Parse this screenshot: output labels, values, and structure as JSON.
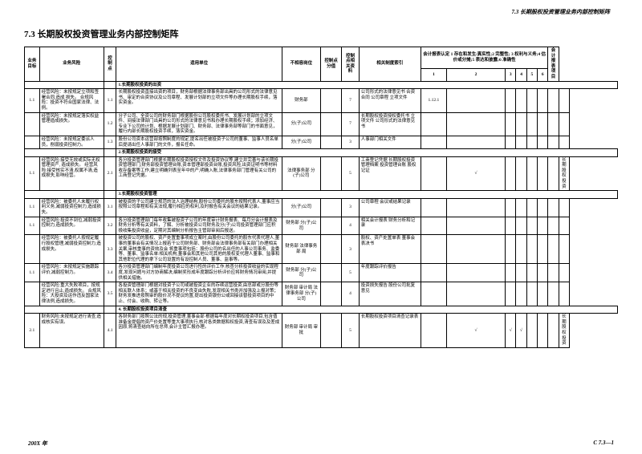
{
  "header_text": "7.3 长期股权投资管理业务内部控制矩阵",
  "page_title": "7.3 长期股权投资管理业务内部控制矩阵",
  "footer_left": "200X 年",
  "footer_right": "C 7.3—1",
  "columns": {
    "c1": "业务目标",
    "c2": "业务风险",
    "c3": "",
    "c4": "控制点",
    "c5": "适用单位",
    "c6": "不相容岗位",
    "c7": "控制点分值",
    "c8": "控制点相关资料",
    "c9": "相关制度索引",
    "c10": "会计报表认定\n1 存在和发生/真实性;2 完整性;\n3 权利与义务;4 估价或分摊;5\n表达和披露;6 准确性",
    "c10_sub": [
      "1",
      "2",
      "3",
      "4",
      "5",
      "6"
    ],
    "c11": "会计报表项目"
  },
  "sections": [
    {
      "title": "1.长期股权投资的出资"
    },
    {
      "title": "2.长期股权投资的接受"
    },
    {
      "title": "3.长期股权投资管理"
    },
    {
      "title": "4. 长期股权投资项目清查"
    }
  ],
  "rows": [
    {
      "n1": "1.1",
      "r1": "经营风险：未按规定立项和签署合同,造成",
      "n2": "3.1",
      "r2": "损失。",
      "sub": "合规风险：投资不符合国家法律、法例。",
      "cn": "1.1",
      "cp": "长期股权投资直接出资的项目，财务部根据法律事务部出具的公司形式的法律意见书、审定的合资协议及公司章程、发展计划部的立项文件等办理长期股权手续，落实资金。",
      "unit": "财务部",
      "bp": "",
      "score": "7",
      "docs": "公司形式的法律意见书\n合资合同\n公司章程\n立项文件",
      "idx": "1.12.1",
      "chk": [
        "",
        "",
        "",
        "",
        "",
        ""
      ],
      "rep": ""
    },
    {
      "n1": "",
      "r1": "经营风险：未按规定落实权益管理造成损失。",
      "n2": "",
      "r2": "",
      "cn": "1.2",
      "cp": "分子公司、全资公司的财务部门根据股份公司股权委托书、发展计划部的立项文件、间接法律部门出具的公司形式的法律意见书和办理长期股权手续；添加经济、专业下公司的计划、根据发展计划部门、财务部、法律事务部等部门的书面意见，履行内部长期股权投资手续，落实资金。",
      "unit": "分(子)公司",
      "bp": "",
      "score": "7",
      "docs": "长期股权投资授权委托书\n立项文件\n公司形式的法律意见书",
      "idx": "",
      "chk": [
        "",
        "",
        "",
        "",
        "",
        ""
      ],
      "rep": ""
    },
    {
      "n1": "",
      "r1": "经营风险：未按规定委派人员，削弱投资控制力。",
      "n2": "",
      "r2": "",
      "cn": "1.3",
      "cp": "股份公司资本运营部按照制度的规定,提名出任被投资子公司的董事、监事人员名单后提请出任人事部门的文件，报名任命。",
      "unit": "分(子)公司",
      "bp": "",
      "score": "3",
      "docs": "人事部门相关文件",
      "idx": "",
      "chk": [
        "",
        "",
        "",
        "",
        "",
        ""
      ],
      "rep": ""
    },
    {
      "section": 1
    },
    {
      "n1": "1.1",
      "r1": "经营风险:接受无效或实际无权管理资产,",
      "n2": "2.1",
      "r2": "造成损失。",
      "sub": "经营风险:接受核实不清,权属不清,造成损失,影响经营。",
      "cn": "2.1",
      "cp": "各分投资管理部门根据长期股权投资授权文件及投资协议等,建立并完善与该长期投资管理部门,财务部投资管理台账,资本管理部投资台账,投资风险,出资证明书等材料收存备案等工作,建立明确列表至年中的产,明确入账,法律事务部门管理有关公司的工商登记凭据。",
      "unit": "法律事务部\n分(子)公司",
      "bp": "",
      "score": "5",
      "docs": "工商登记凭据\n长期股权投资管理档案\n投资管理台账\n股权记证",
      "idx": "",
      "chk": [
        "√",
        "",
        "",
        "",
        "",
        ""
      ],
      "rep": "长期股权投资"
    },
    {
      "section": 2
    },
    {
      "n1": "1.1",
      "r1": "经营风险：被委托人未履行权利义务,减弱投资控制力,造成损失。",
      "n2": "",
      "r2": "",
      "cn": "3.1",
      "cp": "被投资的子公司建立规范的法人治理结构,股份公司委托的股东按照代表人,董事应当按照公司章程和有关法规,履行相应的权利,及时报告有关会议的结果记录。",
      "unit": "分(子)公司",
      "bp": "",
      "score": "3",
      "docs": "公司章程\n会议或结果记录",
      "idx": "",
      "chk": [
        "",
        "",
        "",
        "",
        "",
        ""
      ],
      "rep": ""
    },
    {
      "n1": "1.1",
      "r1": "经营风险:投资不到位,减弱投资控制力,造成损失。",
      "n2": "",
      "r2": "",
      "cn": "3.2",
      "cp": "各分投资管理部门每年收集被投资子公司的年度审计财务报表、每月分会计报表及财务分析等有关资料，了解、分析被投资公司财务及分(子)公司投资管理部门应积极收集投资收益，定期对其编制分析报告主管部审阅后报送。",
      "unit": "财务部\n分(子)公司",
      "bp": "",
      "score": "4",
      "docs": "相关会计报表\n财务分析和记录",
      "idx": "",
      "chk": [
        "",
        "",
        "",
        "",
        "",
        ""
      ],
      "rep": ""
    },
    {
      "n1": "",
      "r1": "经营风险：被委托人按规定履行股权管理,减弱投资控制力,造成损失。",
      "n2": "",
      "r2": "",
      "cn": "3.3",
      "cp": "被投资公司的股权、资产处置重事项成立案时,由股份公司委托的股东代表代理人,董事的董事会有关情况上报若干公司财务部、财务部会法律事务部有关部门办理相关关案,审核重事的资效及会 将重事项包括：股份公司的名出任的人事公司事务、监委等、董事、监事名单:相关机构,董事会和其他公司其他的股权变代理人董事、监事和其他职位代理的拿下公司设置的有设控制人员、董事、监事等。",
      "unit": "财务部\n法律事务部\n局",
      "bp": "",
      "score": "3",
      "docs": "股权、资产处置单表\n董事会表决书",
      "idx": "",
      "chk": [
        "",
        "",
        "",
        "",
        "",
        ""
      ],
      "rep": ""
    },
    {
      "n1": "1.1",
      "r1": "经营风险：未按规定实施跟踪评价,减弱控制力。",
      "n2": "",
      "r2": "",
      "cn": "3.4",
      "cp": "各分投资管理部门编制年度投资公司进行性的评价工作,核查分析投资收益的实现程度,发现问题与对方协商解决,编制奖形成年度跟踪分析评价应将财务情况审阅,并提供相关措施。",
      "unit": "财务部\n分(子)公司",
      "bp": "",
      "score": "5",
      "docs": "年度跟踪评价报告",
      "idx": "",
      "chk": [
        "",
        "",
        "",
        "",
        "",
        ""
      ],
      "rep": ""
    },
    {
      "n1": "",
      "r1": "经营风险:重大失败项目，按规定进行且止,造成损失。",
      "n2": "3.1",
      "r2": "",
      "sub": "合规风险：大投资及运作违反国家法律法例,造成损失。",
      "cn": "3.5",
      "cp": "各投资管理部门根据对投资子公司或被投资企业的存续运营投资,由总部或分股份等相关联人体系；或基于相关投资的不良变由失败,发现相关书类并加强及上报对策；财务发推进按照审的股价况不提议的置,提出投资银份公或回接该替投资项目的中止、付会、收购、转让等。",
      "unit": "财务部\n审计局\n法律事务部\n分(子)公司",
      "bp": "",
      "score": "4",
      "docs": "投资损失报告\n股份公司批复意见",
      "idx": "",
      "chk": [
        "",
        "",
        "",
        "",
        "",
        ""
      ],
      "rep": ""
    },
    {
      "section": 3
    },
    {
      "n1": "2.1",
      "r1": "财务风险:未按规定进行清查,造成核实有误。",
      "n2": "",
      "r2": "",
      "cn": "4.1",
      "cp": "各财务部门按照公法的规,投资管理,董事会部 根据每年度对长期权投资项目,包含值准备金提倡的资产价处置等重大事项执行,核对各类数据和权投资,清查有误及及差成因原,将清查结向所在总师,会计主管汇报办理。",
      "unit": "财务部\n审计局\n审批",
      "bp": "",
      "score": "5",
      "docs": "长期股权投资项目清查记录表",
      "idx": "",
      "chk": [
        "√",
        "√",
        "√",
        "",
        "",
        ""
      ],
      "rep": "长期股权投资"
    }
  ]
}
